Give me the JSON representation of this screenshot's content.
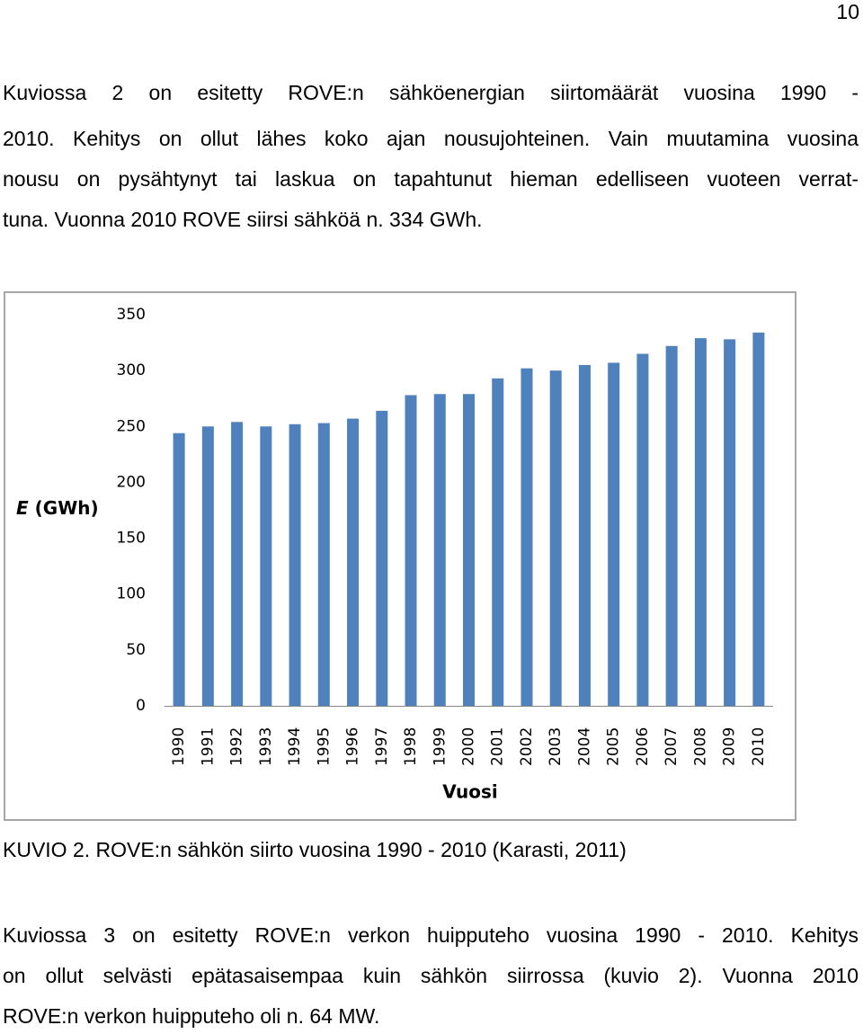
{
  "page_number": "10",
  "paragraph_1": [
    "Kuviossa 2 on esitetty ROVE:n sähköenergian siirtomäärät vuosina 1990 -",
    "2010. Kehitys on ollut lähes koko ajan nousujohteinen. Vain muutamina vuosina",
    "nousu on pysähtynyt tai laskua on tapahtunut hieman edelliseen vuoteen verrat-",
    "tuna. Vuonna 2010 ROVE siirsi sähköä n. 334 GWh."
  ],
  "chart_data": {
    "type": "bar",
    "y_label_symbol": "E",
    "y_label_unit": "(GWh)",
    "x_label": "Vuosi",
    "categories": [
      "1990",
      "1991",
      "1992",
      "1993",
      "1994",
      "1995",
      "1996",
      "1997",
      "1998",
      "1999",
      "2000",
      "2001",
      "2002",
      "2003",
      "2004",
      "2005",
      "2006",
      "2007",
      "2008",
      "2009",
      "2010"
    ],
    "values": [
      244,
      250,
      254,
      250,
      252,
      253,
      257,
      264,
      278,
      279,
      279,
      293,
      302,
      300,
      305,
      307,
      315,
      322,
      329,
      328,
      334
    ],
    "color": "#4f81bd",
    "ylim": [
      0,
      350
    ],
    "yticks": [
      0,
      50,
      100,
      150,
      200,
      250,
      300,
      350
    ],
    "grid": false
  },
  "caption": "KUVIO 2. ROVE:n sähkön siirto vuosina 1990 - 2010 (Karasti, 2011)",
  "paragraph_2": [
    "Kuviossa 3 on esitetty ROVE:n verkon huipputeho vuosina 1990 - 2010. Kehitys",
    "on ollut selvästi epätasaisempaa kuin sähkön siirrossa (kuvio 2). Vuonna 2010",
    "ROVE:n verkon huipputeho oli n. 64 MW."
  ]
}
